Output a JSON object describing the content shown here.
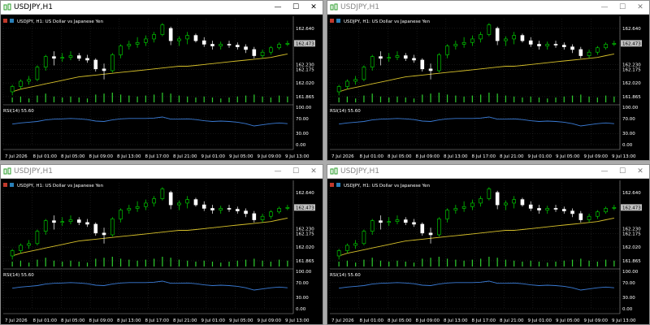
{
  "windows": [
    {
      "title": "USDJPY,H1",
      "active": true,
      "controls": {
        "minimize": "—",
        "maximize": "☐",
        "close": "✕"
      }
    },
    {
      "title": "USDJPY,H1",
      "active": false,
      "controls": {
        "minimize": "—",
        "maximize": "☐",
        "close": "✕"
      }
    },
    {
      "title": "USDJPY,H1",
      "active": false,
      "controls": {
        "minimize": "—",
        "maximize": "☐",
        "close": "✕"
      }
    },
    {
      "title": "USDJPY,H1",
      "active": false,
      "controls": {
        "minimize": "—",
        "maximize": "☐",
        "close": "✕"
      }
    }
  ],
  "colors": {
    "background": "#000000",
    "grid": "#3a3a3a",
    "bull_candle": "#00e000",
    "bear_candle": "#ffffff",
    "ma_line": "#d6c02a",
    "volume_bar": "#2ecc2e",
    "rsi_line": "#3a7bd5",
    "axis_text": "#ffffff",
    "price_tag_bg": "#c0c0c0"
  },
  "chart_data": {
    "type": "candlestick",
    "symbol_label": "USDJPY, H1:  US Dollar vs Japanese Yen",
    "current_price_label": "162.473",
    "price_ticks": [
      "162.640",
      "162.230",
      "162.175",
      "162.020",
      "161.865"
    ],
    "price_tick_values": [
      162.64,
      162.23,
      162.175,
      162.02,
      161.865
    ],
    "ylim": [
      161.8,
      162.75
    ],
    "time_labels": [
      "7 Jul 2026",
      "8 Jul 01:00",
      "8 Jul 05:00",
      "8 Jul 09:00",
      "8 Jul 13:00",
      "8 Jul 17:00",
      "8 Jul 21:00",
      "9 Jul 01:00",
      "9 Jul 05:00",
      "9 Jul 09:00",
      "9 Jul 13:00"
    ],
    "candles": [
      {
        "o": 161.92,
        "h": 162.0,
        "l": 161.88,
        "c": 161.98
      },
      {
        "o": 161.98,
        "h": 162.06,
        "l": 161.95,
        "c": 162.04
      },
      {
        "o": 162.04,
        "h": 162.1,
        "l": 162.0,
        "c": 162.06
      },
      {
        "o": 162.06,
        "h": 162.22,
        "l": 162.04,
        "c": 162.2
      },
      {
        "o": 162.2,
        "h": 162.34,
        "l": 162.16,
        "c": 162.32
      },
      {
        "o": 162.32,
        "h": 162.38,
        "l": 162.22,
        "c": 162.3
      },
      {
        "o": 162.3,
        "h": 162.36,
        "l": 162.26,
        "c": 162.31
      },
      {
        "o": 162.31,
        "h": 162.38,
        "l": 162.28,
        "c": 162.33
      },
      {
        "o": 162.33,
        "h": 162.36,
        "l": 162.27,
        "c": 162.3
      },
      {
        "o": 162.3,
        "h": 162.34,
        "l": 162.25,
        "c": 162.28
      },
      {
        "o": 162.28,
        "h": 162.3,
        "l": 162.15,
        "c": 162.18
      },
      {
        "o": 162.18,
        "h": 162.24,
        "l": 162.06,
        "c": 162.16
      },
      {
        "o": 162.16,
        "h": 162.36,
        "l": 162.14,
        "c": 162.34
      },
      {
        "o": 162.34,
        "h": 162.46,
        "l": 162.3,
        "c": 162.44
      },
      {
        "o": 162.44,
        "h": 162.5,
        "l": 162.4,
        "c": 162.46
      },
      {
        "o": 162.46,
        "h": 162.54,
        "l": 162.42,
        "c": 162.48
      },
      {
        "o": 162.48,
        "h": 162.56,
        "l": 162.44,
        "c": 162.52
      },
      {
        "o": 162.52,
        "h": 162.6,
        "l": 162.48,
        "c": 162.57
      },
      {
        "o": 162.57,
        "h": 162.7,
        "l": 162.55,
        "c": 162.68
      },
      {
        "o": 162.64,
        "h": 162.66,
        "l": 162.45,
        "c": 162.5
      },
      {
        "o": 162.5,
        "h": 162.55,
        "l": 162.44,
        "c": 162.52
      },
      {
        "o": 162.52,
        "h": 162.6,
        "l": 162.46,
        "c": 162.56
      },
      {
        "o": 162.56,
        "h": 162.58,
        "l": 162.48,
        "c": 162.5
      },
      {
        "o": 162.5,
        "h": 162.54,
        "l": 162.43,
        "c": 162.46
      },
      {
        "o": 162.46,
        "h": 162.5,
        "l": 162.4,
        "c": 162.44
      },
      {
        "o": 162.44,
        "h": 162.49,
        "l": 162.4,
        "c": 162.46
      },
      {
        "o": 162.46,
        "h": 162.5,
        "l": 162.42,
        "c": 162.45
      },
      {
        "o": 162.45,
        "h": 162.48,
        "l": 162.4,
        "c": 162.43
      },
      {
        "o": 162.43,
        "h": 162.46,
        "l": 162.36,
        "c": 162.4
      },
      {
        "o": 162.4,
        "h": 162.43,
        "l": 162.3,
        "c": 162.33
      },
      {
        "o": 162.33,
        "h": 162.4,
        "l": 162.3,
        "c": 162.37
      },
      {
        "o": 162.37,
        "h": 162.44,
        "l": 162.34,
        "c": 162.42
      },
      {
        "o": 162.42,
        "h": 162.48,
        "l": 162.4,
        "c": 162.46
      },
      {
        "o": 162.46,
        "h": 162.5,
        "l": 162.44,
        "c": 162.47
      }
    ],
    "ma_line": [
      161.92,
      161.95,
      161.97,
      161.99,
      162.01,
      162.03,
      162.05,
      162.07,
      162.09,
      162.1,
      162.11,
      162.12,
      162.13,
      162.14,
      162.15,
      162.16,
      162.17,
      162.18,
      162.19,
      162.2,
      162.21,
      162.21,
      162.22,
      162.23,
      162.24,
      162.25,
      162.26,
      162.27,
      162.28,
      162.29,
      162.3,
      162.31,
      162.33,
      162.35
    ],
    "volumes": [
      0.5,
      0.6,
      0.4,
      0.7,
      0.9,
      0.6,
      0.5,
      0.6,
      0.5,
      0.4,
      0.8,
      0.9,
      1.0,
      0.8,
      0.7,
      0.6,
      0.7,
      0.8,
      1.0,
      0.9,
      0.7,
      0.6,
      0.5,
      0.6,
      0.5,
      0.4,
      0.5,
      0.6,
      0.7,
      0.8,
      0.6,
      0.5,
      0.7,
      0.6
    ],
    "rsi": {
      "label": "RSI(14) 55.60",
      "ticks": [
        "100.00",
        "70.00",
        "30.00",
        "0.00"
      ],
      "tick_values": [
        100,
        70,
        30,
        0
      ],
      "values": [
        55,
        58,
        60,
        62,
        66,
        68,
        69,
        70,
        69,
        67,
        63,
        62,
        66,
        69,
        70,
        70,
        70,
        71,
        74,
        68,
        68,
        69,
        67,
        64,
        62,
        63,
        62,
        60,
        56,
        50,
        53,
        56,
        58,
        56
      ]
    }
  }
}
